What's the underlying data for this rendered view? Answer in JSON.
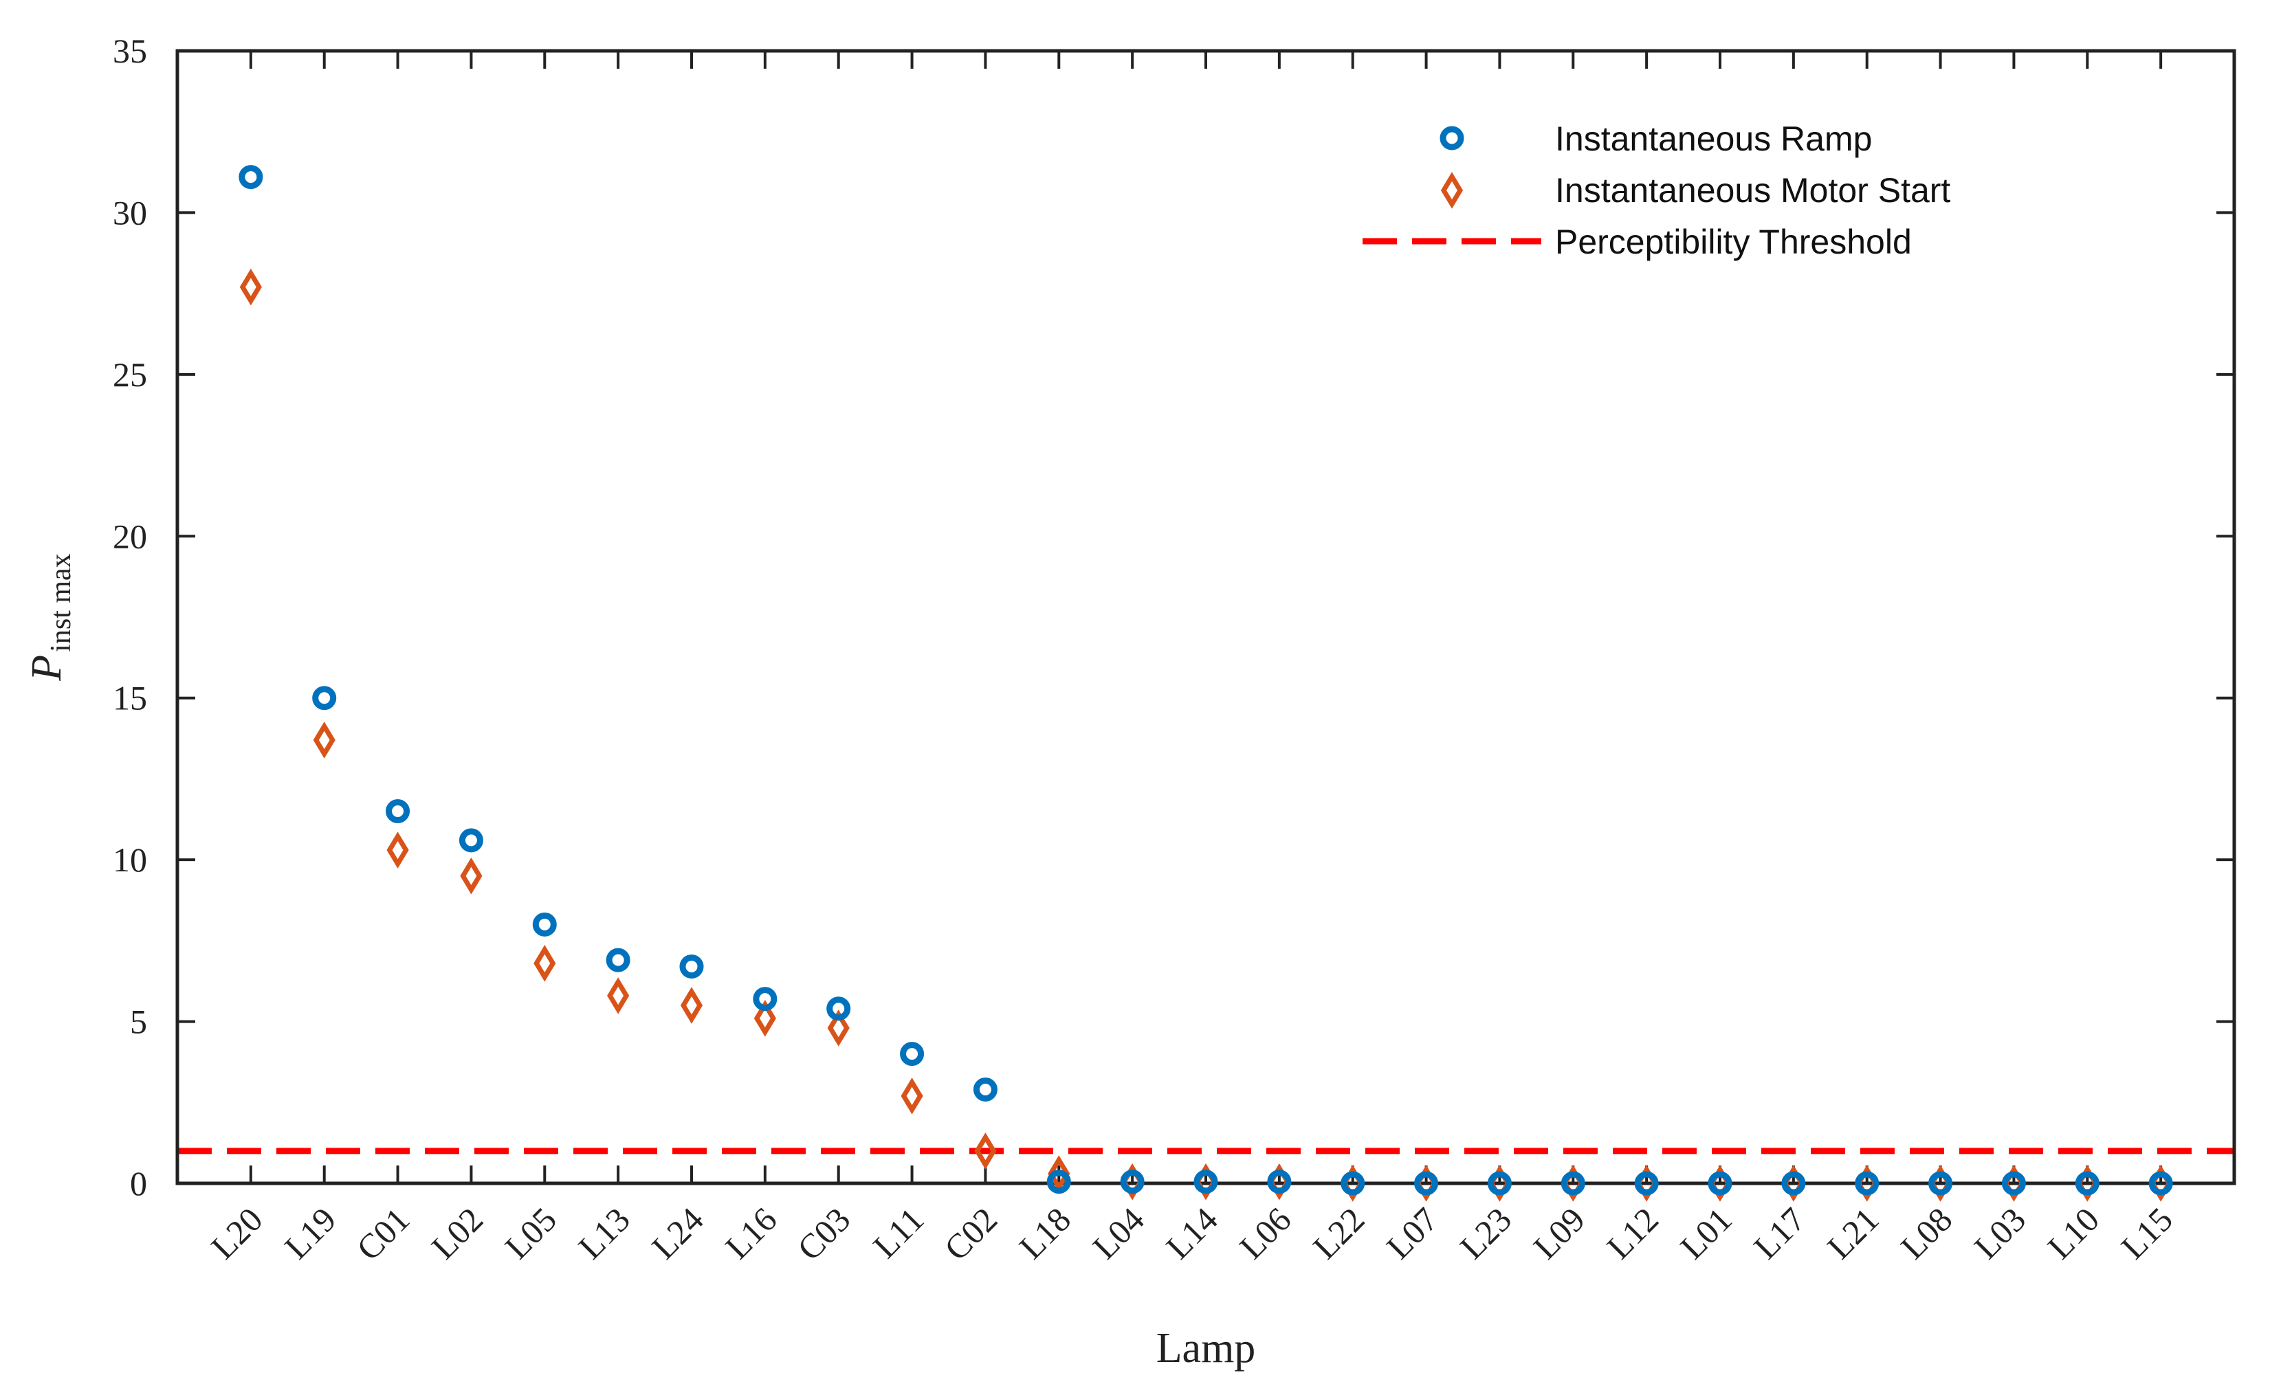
{
  "chart_data": {
    "type": "scatter",
    "title": "",
    "xlabel": "Lamp",
    "ylabel": {
      "main": "P",
      "subscript": "inst max"
    },
    "ylim": [
      0,
      35
    ],
    "yticks": [
      0,
      5,
      10,
      15,
      20,
      25,
      30,
      35
    ],
    "grid": false,
    "legend_position": "top-right",
    "categories": [
      "L20",
      "L19",
      "C01",
      "L02",
      "L05",
      "L13",
      "L24",
      "L16",
      "C03",
      "L11",
      "C02",
      "L18",
      "L04",
      "L14",
      "L06",
      "L22",
      "L07",
      "L23",
      "L09",
      "L12",
      "L01",
      "L17",
      "L21",
      "L08",
      "L03",
      "L10",
      "L15"
    ],
    "series": [
      {
        "name": "Instantaneous Ramp",
        "marker": "circle",
        "color": "#0072BD",
        "values": [
          31.1,
          15.0,
          11.5,
          10.6,
          8.0,
          6.9,
          6.7,
          5.7,
          5.4,
          4.0,
          2.9,
          0.05,
          0.05,
          0.05,
          0.05,
          0.0,
          0.0,
          0.0,
          0.0,
          0.0,
          0.0,
          0.0,
          0.0,
          0.0,
          0.0,
          0.0,
          0.0
        ]
      },
      {
        "name": "Instantaneous Motor Start",
        "marker": "diamond",
        "color": "#D95319",
        "values": [
          27.7,
          13.7,
          10.3,
          9.5,
          6.8,
          5.8,
          5.5,
          5.1,
          4.8,
          2.7,
          1.0,
          0.3,
          0.05,
          0.05,
          0.05,
          0.0,
          0.0,
          0.0,
          0.0,
          0.0,
          0.0,
          0.0,
          0.0,
          0.0,
          0.0,
          0.0,
          0.0
        ]
      }
    ],
    "reference_lines": [
      {
        "name": "Perceptibility Threshold",
        "y": 1.0,
        "color": "#FF0000",
        "style": "dashed"
      }
    ]
  }
}
